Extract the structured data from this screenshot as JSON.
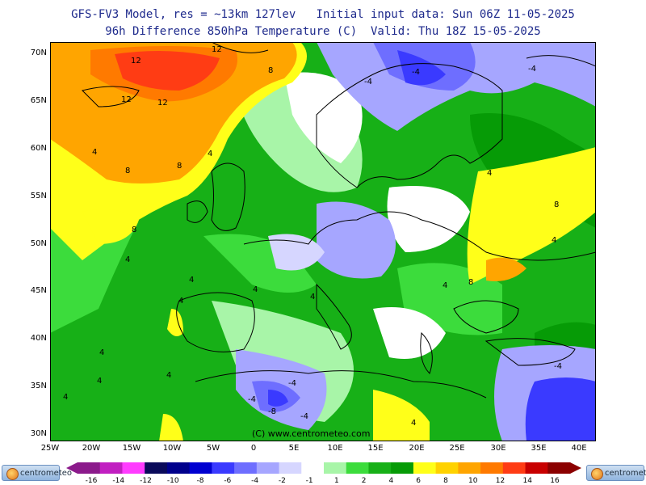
{
  "header": {
    "line1": "GFS-FV3 Model, res = ~13km 127lev   Initial input data: Sun 06Z 11-05-2025",
    "line2": "96h Difference 850hPa Temperature (C)  Valid: Thu 18Z 15-05-2025"
  },
  "axes": {
    "lat_labels": [
      "70N",
      "65N",
      "60N",
      "55N",
      "50N",
      "45N",
      "40N",
      "35N",
      "30N"
    ],
    "lon_labels": [
      "25W",
      "20W",
      "15W",
      "10W",
      "5W",
      "0",
      "5E",
      "10E",
      "15E",
      "20E",
      "25E",
      "30E",
      "35E",
      "40E"
    ]
  },
  "watermark": "(C) www.centrometeo.com",
  "contour_labels": {
    "pos12": "12",
    "pos8": "8",
    "pos4": "4",
    "neg4": "-4",
    "neg8": "-8"
  },
  "colorbar": {
    "labels": [
      "-16",
      "-14",
      "-12",
      "-10",
      "-8",
      "-6",
      "-4",
      "-2",
      "-1",
      "1",
      "2",
      "4",
      "6",
      "8",
      "10",
      "12",
      "14",
      "16"
    ],
    "colors": [
      "#8b1a8b",
      "#c11fc1",
      "#ff3cff",
      "#0a0a5a",
      "#00008c",
      "#0000d0",
      "#3a3aff",
      "#6e6eff",
      "#a6a6ff",
      "#d6d6ff",
      "#ffffff",
      "#a8f5a8",
      "#3cdc3c",
      "#17b017",
      "#069b06",
      "#ffff19",
      "#ffd200",
      "#ffa500",
      "#ff7a00",
      "#ff3c14",
      "#c80000",
      "#8b0000"
    ]
  },
  "logos": {
    "left": "centrometeo",
    "right": "centrometeo"
  }
}
